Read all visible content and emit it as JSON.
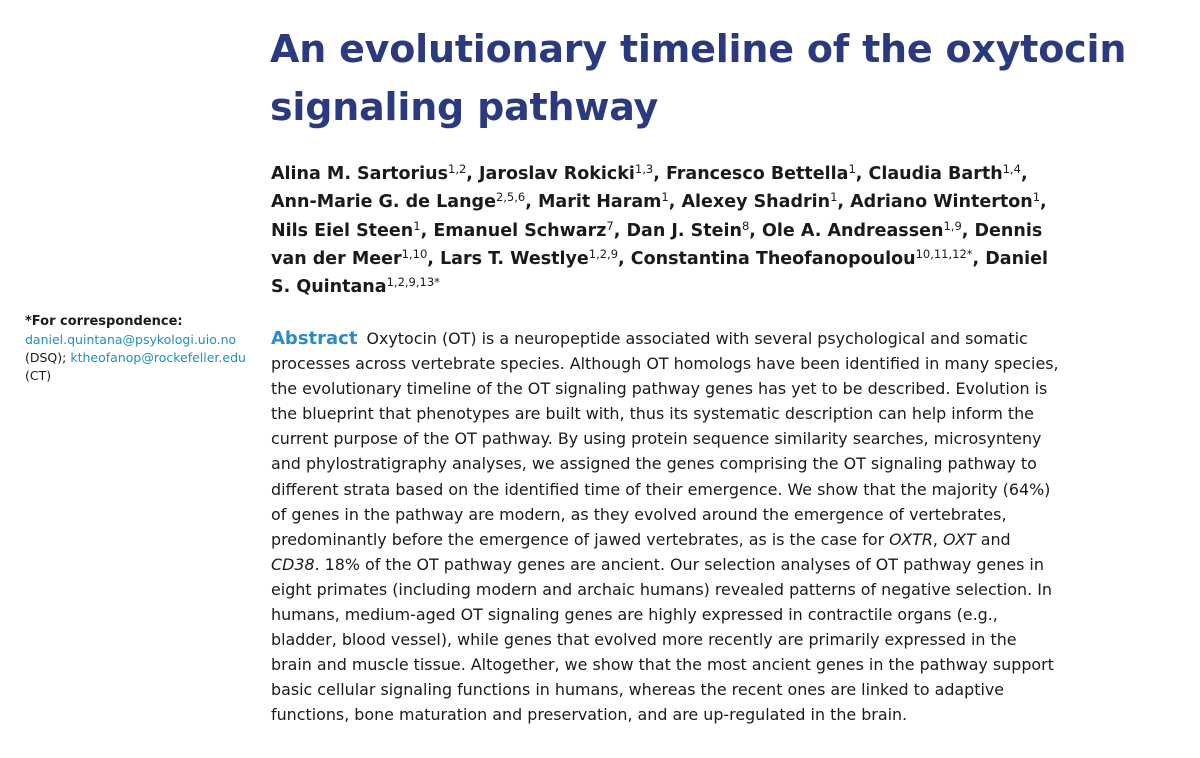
{
  "title": "An evolutionary timeline of the oxytocin signaling pathway",
  "authors": [
    {
      "name": "Alina M. Sartorius",
      "aff": "1,2",
      "sep": ", "
    },
    {
      "name": "Jaroslav Rokicki",
      "aff": "1,3",
      "sep": ", "
    },
    {
      "name": "Francesco Bettella",
      "aff": "1",
      "sep": ", "
    },
    {
      "name": "Claudia Barth",
      "aff": "1,4",
      "sep": ", "
    },
    {
      "name": "Ann-Marie G. de Lange",
      "aff": "2,5,6",
      "sep": ", "
    },
    {
      "name": "Marit Haram",
      "aff": "1",
      "sep": ", "
    },
    {
      "name": "Alexey Shadrin",
      "aff": "1",
      "sep": ", "
    },
    {
      "name": "Adriano Winterton",
      "aff": "1",
      "sep": ", "
    },
    {
      "name": "Nils Eiel Steen",
      "aff": "1",
      "sep": ", "
    },
    {
      "name": "Emanuel Schwarz",
      "aff": "7",
      "sep": ", "
    },
    {
      "name": "Dan J. Stein",
      "aff": "8",
      "sep": ", "
    },
    {
      "name": "Ole A. Andreassen",
      "aff": "1,9",
      "sep": ", "
    },
    {
      "name": "Dennis van der Meer",
      "aff": "1,10",
      "sep": ", "
    },
    {
      "name": "Lars T. Westlye",
      "aff": "1,2,9",
      "sep": ", "
    },
    {
      "name": "Constantina Theofanopoulou",
      "aff": "10,11,12*",
      "sep": ", "
    },
    {
      "name": "Daniel S. Quintana",
      "aff": "1,2,9,13*",
      "sep": ""
    }
  ],
  "correspondence": {
    "heading": "*For correspondence:",
    "email1": "daniel.quintana@psykologi.uio.no",
    "tag1": "(DSQ);",
    "email2": "ktheofanop@rockefeller.edu",
    "tag2": "(CT)"
  },
  "abstract": {
    "heading": "Abstract",
    "p1": "Oxytocin (OT) is a neuropeptide associated with several psychological and somatic processes across vertebrate species. Although OT homologs have been identified in many species, the evolutionary timeline of the OT signaling pathway genes has yet to be described. Evolution is the blueprint that phenotypes are built with, thus its systematic description can help inform the current purpose of the OT pathway. By using protein sequence similarity searches, microsynteny and phylostratigraphy analyses, we assigned the genes comprising the OT signaling pathway to different strata based on the identified time of their emergence. We show that the majority (64%) of genes in the pathway are modern, as they evolved around the emergence of vertebrates, predominantly before the emergence of jawed vertebrates, as is the case for ",
    "gene1": "OXTR",
    "comma1": ", ",
    "gene2": "OXT",
    "and1": " and ",
    "gene3": "CD38",
    "p2": ". 18% of the OT pathway genes are ancient. Our selection analyses of OT pathway genes in eight primates (including modern and archaic humans) revealed patterns of negative selection. In humans, medium-aged OT signaling genes are highly expressed in contractile organs (e.g., bladder, blood vessel), while genes that evolved more recently are primarily expressed in the brain and muscle tissue. Altogether, we show that the most ancient genes in the pathway support basic cellular signaling functions in humans, whereas the recent ones are linked to adaptive functions, bone maturation and preservation, and are up-regulated in the brain."
  }
}
